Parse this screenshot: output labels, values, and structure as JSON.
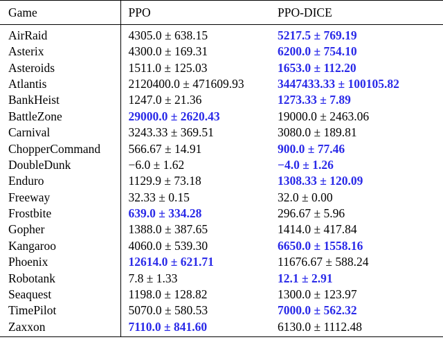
{
  "table": {
    "headers": {
      "game": "Game",
      "ppo": "PPO",
      "dice": "PPO-DICE"
    },
    "colors": {
      "best": "#2a2ae8",
      "text": "#000000",
      "rule": "#000000"
    },
    "rows": [
      {
        "game": "AirRaid",
        "ppo": "4305.0 ± 638.15",
        "dice": "5217.5 ± 769.19",
        "best": "dice"
      },
      {
        "game": "Asterix",
        "ppo": "4300.0 ± 169.31",
        "dice": "6200.0 ± 754.10",
        "best": "dice"
      },
      {
        "game": "Asteroids",
        "ppo": "1511.0 ± 125.03",
        "dice": "1653.0 ± 112.20",
        "best": "dice"
      },
      {
        "game": "Atlantis",
        "ppo": "2120400.0 ± 471609.93",
        "dice": "3447433.33 ± 100105.82",
        "best": "dice"
      },
      {
        "game": "BankHeist",
        "ppo": "1247.0 ± 21.36",
        "dice": "1273.33 ± 7.89",
        "best": "dice"
      },
      {
        "game": "BattleZone",
        "ppo": "29000.0 ± 2620.43",
        "dice": "19000.0 ± 2463.06",
        "best": "ppo"
      },
      {
        "game": "Carnival",
        "ppo": "3243.33 ± 369.51",
        "dice": "3080.0 ± 189.81",
        "best": "none"
      },
      {
        "game": "ChopperCommand",
        "ppo": "566.67 ± 14.91",
        "dice": "900.0 ± 77.46",
        "best": "dice"
      },
      {
        "game": "DoubleDunk",
        "ppo": "−6.0 ± 1.62",
        "dice": "−4.0 ± 1.26",
        "best": "dice"
      },
      {
        "game": "Enduro",
        "ppo": "1129.9 ± 73.18",
        "dice": "1308.33 ± 120.09",
        "best": "dice"
      },
      {
        "game": "Freeway",
        "ppo": "32.33 ± 0.15",
        "dice": "32.0 ± 0.00",
        "best": "none"
      },
      {
        "game": "Frostbite",
        "ppo": "639.0 ± 334.28",
        "dice": "296.67 ± 5.96",
        "best": "ppo"
      },
      {
        "game": "Gopher",
        "ppo": "1388.0 ± 387.65",
        "dice": "1414.0 ± 417.84",
        "best": "none"
      },
      {
        "game": "Kangaroo",
        "ppo": "4060.0 ± 539.30",
        "dice": "6650.0 ± 1558.16",
        "best": "dice"
      },
      {
        "game": "Phoenix",
        "ppo": "12614.0 ± 621.71",
        "dice": "11676.67 ± 588.24",
        "best": "ppo"
      },
      {
        "game": "Robotank",
        "ppo": "7.8 ± 1.33",
        "dice": "12.1 ± 2.91",
        "best": "dice"
      },
      {
        "game": "Seaquest",
        "ppo": "1198.0 ± 128.82",
        "dice": "1300.0 ± 123.97",
        "best": "none"
      },
      {
        "game": "TimePilot",
        "ppo": "5070.0 ± 580.53",
        "dice": "7000.0 ± 562.32",
        "best": "dice"
      },
      {
        "game": "Zaxxon",
        "ppo": "7110.0 ± 841.60",
        "dice": "6130.0 ± 1112.48",
        "best": "ppo"
      }
    ]
  }
}
